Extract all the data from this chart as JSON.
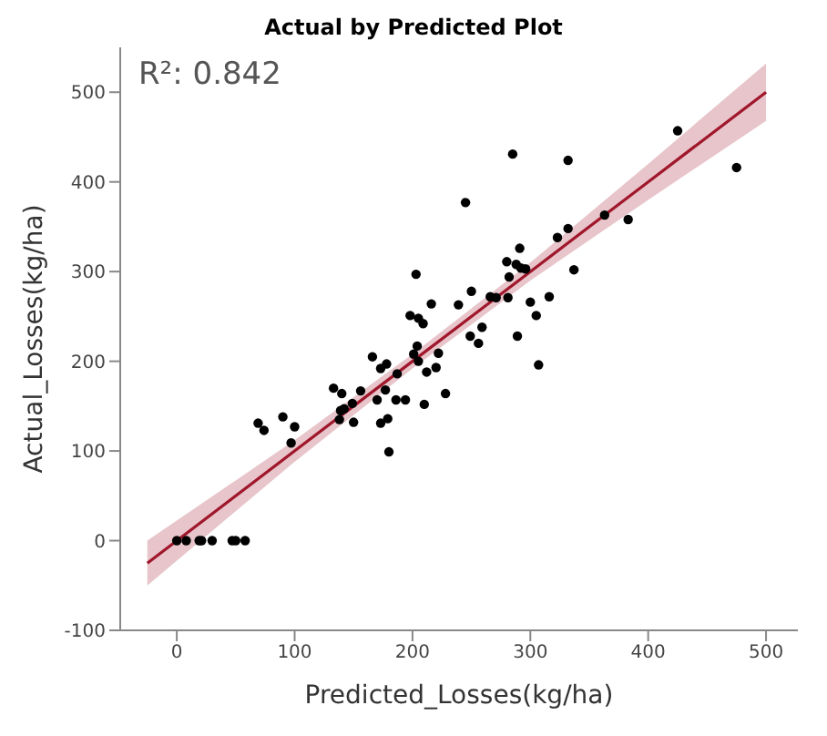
{
  "chart_data": {
    "type": "scatter",
    "title": "Actual by Predicted Plot",
    "xlabel": "Predicted_Losses(kg/ha)",
    "ylabel": "Actual_Losses(kg/ha)",
    "annotations": [
      "R²: 0.842"
    ],
    "xlim": [
      -48,
      527
    ],
    "xticks": [
      0,
      100,
      200,
      300,
      400,
      500
    ],
    "ylim": [
      -100,
      550
    ],
    "yticks": [
      -100,
      0,
      100,
      200,
      300,
      400,
      500
    ],
    "series": [
      {
        "marker": "circle",
        "color": "#000000",
        "x": [
          425,
          475,
          285,
          332,
          245,
          363,
          383,
          332,
          323,
          337,
          291,
          280,
          288,
          292,
          296,
          282,
          203,
          250,
          266,
          271,
          281,
          316,
          300,
          216,
          239,
          198,
          205,
          209,
          305,
          259,
          249,
          289,
          256,
          307,
          204,
          166,
          201,
          205,
          222,
          220,
          212,
          210,
          228,
          178,
          173,
          187,
          177,
          156,
          170,
          186,
          194,
          179,
          173,
          180,
          150,
          149,
          133,
          140,
          139,
          142,
          138,
          69,
          74,
          90,
          100,
          97,
          0,
          8,
          19,
          21,
          30,
          47,
          50,
          58
        ],
        "values": [
          457,
          416,
          431,
          424,
          377,
          363,
          358,
          348,
          338,
          302,
          326,
          311,
          308,
          304,
          303,
          294,
          297,
          278,
          272,
          271,
          271,
          272,
          266,
          264,
          263,
          251,
          248,
          242,
          251,
          238,
          228,
          228,
          220,
          196,
          217,
          205,
          208,
          200,
          209,
          193,
          188,
          152,
          164,
          197,
          192,
          186,
          168,
          167,
          157,
          157,
          157,
          136,
          131,
          99,
          132,
          153,
          170,
          164,
          145,
          147,
          135,
          131,
          123,
          138,
          127,
          109,
          0,
          0,
          0,
          0,
          0,
          0,
          0,
          0
        ]
      },
      {
        "type": "line",
        "marker": "none",
        "color": "#a0162b",
        "x": [
          -25,
          100,
          200,
          300,
          400,
          500
        ],
        "values": [
          -25,
          100,
          200,
          300,
          400,
          500
        ],
        "lower": [
          -50,
          88,
          192,
          290,
          380,
          468
        ],
        "upper": [
          0,
          112,
          208,
          310,
          420,
          532
        ]
      }
    ]
  }
}
